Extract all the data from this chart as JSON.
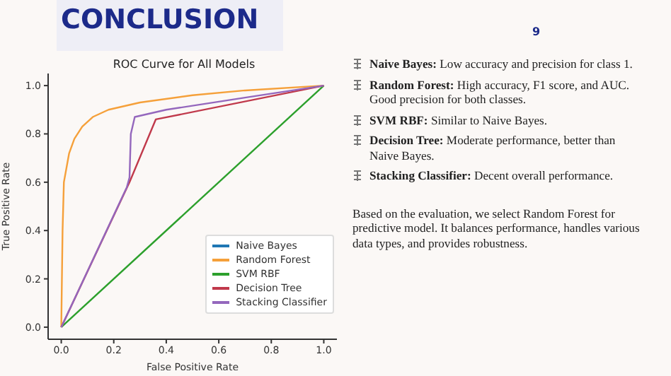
{
  "chart_data": {
    "type": "line",
    "title": "ROC Curve for All Models",
    "xlabel": "False Positive Rate",
    "ylabel": "True Positive Rate",
    "annotations": [
      "CONCLUSION",
      "9",
      "Naive Bayes: Low accuracy and precision for class 1.",
      "Random Forest: High accuracy, F1 score, and AUC. Good precision for both classes.",
      "SVM RBF: Similar to Naive Bayes.",
      "Decision Tree: Moderate performance, better than Naive Bayes.",
      "Stacking Classifier: Decent overall performance.",
      "Based on the evaluation, we select Random Forest for predictive model. It balances performance, handles various data types, and provides robustness."
    ],
    "xlim": [
      -0.05,
      1.05
    ],
    "ylim": [
      -0.05,
      1.05
    ],
    "xticks": [
      {
        "value": 0,
        "label": "0.0"
      },
      0.2,
      0.4,
      0.6,
      0.8,
      {
        "value": 1,
        "label": "1.0"
      }
    ],
    "yticks": [
      {
        "value": 0,
        "label": "0.0"
      },
      0.2,
      0.4,
      0.6,
      0.8,
      {
        "value": 1,
        "label": "1.0"
      }
    ],
    "legend": "bottom right",
    "grid": false,
    "marker": "none",
    "line_style": "solid",
    "series": [
      {
        "name": "Naive Bayes",
        "color": "#1f77b4"
      },
      {
        "name": "Random Forest",
        "color": "#f5a03a",
        "x": [
          0,
          0.005,
          0.01,
          0.03,
          0.05,
          0.08,
          0.12,
          0.18,
          0.3,
          0.5,
          0.7,
          1
        ],
        "values": [
          0,
          0.4,
          0.6,
          0.72,
          0.78,
          0.83,
          0.87,
          0.9,
          0.93,
          0.96,
          0.98,
          1
        ]
      },
      {
        "name": "SVM RBF",
        "color": "#2ca02c",
        "x": [
          0,
          1
        ],
        "values": [
          0,
          1
        ]
      },
      {
        "name": "Decision Tree",
        "color": "#c0394b",
        "x": [
          0,
          0.26,
          0.36,
          1
        ],
        "values": [
          0,
          0.6,
          0.86,
          1
        ]
      },
      {
        "name": "Stacking Classifier",
        "color": "#9467bd",
        "x": [
          0,
          0.25,
          0.26,
          0.265,
          0.28,
          0.4,
          0.7,
          1
        ],
        "values": [
          0,
          0.58,
          0.62,
          0.8,
          0.87,
          0.9,
          0.95,
          1
        ]
      }
    ]
  }
}
